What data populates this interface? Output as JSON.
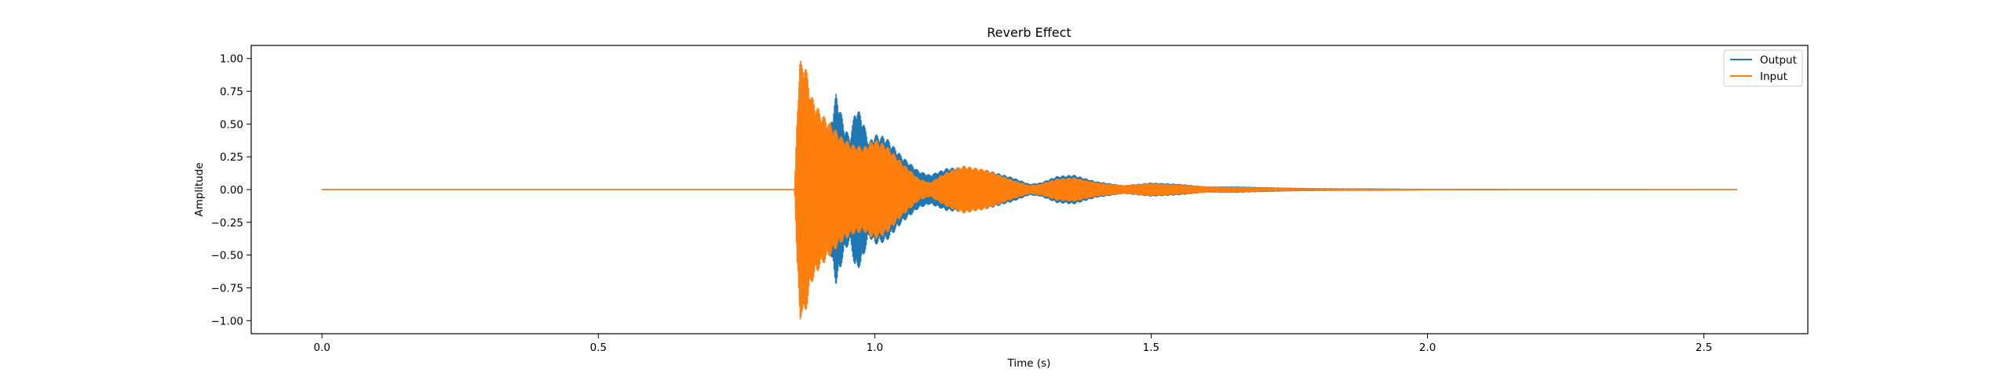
{
  "chart_data": {
    "type": "line",
    "title": "Reverb Effect",
    "xlabel": "Time (s)",
    "ylabel": "Amplitude",
    "xlim": [
      -0.128,
      2.688
    ],
    "ylim": [
      -1.1,
      1.1
    ],
    "x_ticks": [
      0.0,
      0.5,
      1.0,
      1.5,
      2.0,
      2.5
    ],
    "x_tick_labels": [
      "0.0",
      "0.5",
      "1.0",
      "1.5",
      "2.0",
      "2.5"
    ],
    "y_ticks": [
      1.0,
      0.75,
      0.5,
      0.25,
      0.0,
      -0.25,
      -0.5,
      -0.75,
      -1.0
    ],
    "y_tick_labels": [
      "1.00",
      "0.75",
      "0.50",
      "0.25",
      "0.00",
      "−0.25",
      "−0.50",
      "−0.75",
      "−1.00"
    ],
    "grid": false,
    "legend_position": "top-right",
    "series": [
      {
        "name": "Output",
        "color": "#1f77b4",
        "envelope": [
          [
            0.0,
            0.0
          ],
          [
            0.857,
            0.0
          ],
          [
            0.86,
            0.55
          ],
          [
            0.865,
            0.97
          ],
          [
            0.872,
            0.92
          ],
          [
            0.88,
            0.72
          ],
          [
            0.89,
            0.58
          ],
          [
            0.9,
            0.42
          ],
          [
            0.91,
            0.33
          ],
          [
            0.92,
            0.5
          ],
          [
            0.93,
            0.73
          ],
          [
            0.935,
            0.66
          ],
          [
            0.945,
            0.48
          ],
          [
            0.955,
            0.4
          ],
          [
            0.96,
            0.5
          ],
          [
            0.965,
            0.62
          ],
          [
            0.975,
            0.58
          ],
          [
            0.99,
            0.36
          ],
          [
            1.0,
            0.42
          ],
          [
            1.02,
            0.4
          ],
          [
            1.05,
            0.25
          ],
          [
            1.08,
            0.14
          ],
          [
            1.1,
            0.11
          ],
          [
            1.13,
            0.16
          ],
          [
            1.16,
            0.17
          ],
          [
            1.2,
            0.15
          ],
          [
            1.25,
            0.09
          ],
          [
            1.28,
            0.04
          ],
          [
            1.3,
            0.05
          ],
          [
            1.33,
            0.1
          ],
          [
            1.36,
            0.11
          ],
          [
            1.4,
            0.06
          ],
          [
            1.45,
            0.03
          ],
          [
            1.5,
            0.05
          ],
          [
            1.55,
            0.04
          ],
          [
            1.6,
            0.02
          ],
          [
            1.65,
            0.02
          ],
          [
            1.7,
            0.015
          ],
          [
            1.75,
            0.01
          ],
          [
            1.8,
            0.007
          ],
          [
            2.0,
            0.002
          ],
          [
            2.56,
            0.0
          ]
        ]
      },
      {
        "name": "Input",
        "color": "#ff7f0e",
        "envelope": [
          [
            0.0,
            0.0
          ],
          [
            0.855,
            0.0
          ],
          [
            0.86,
            0.65
          ],
          [
            0.865,
            1.0
          ],
          [
            0.868,
            0.95
          ],
          [
            0.872,
            1.0
          ],
          [
            0.878,
            0.88
          ],
          [
            0.885,
            0.72
          ],
          [
            0.9,
            0.6
          ],
          [
            0.92,
            0.5
          ],
          [
            0.94,
            0.4
          ],
          [
            0.96,
            0.34
          ],
          [
            0.98,
            0.32
          ],
          [
            1.0,
            0.38
          ],
          [
            1.02,
            0.34
          ],
          [
            1.05,
            0.2
          ],
          [
            1.08,
            0.08
          ],
          [
            1.1,
            0.05
          ],
          [
            1.13,
            0.13
          ],
          [
            1.16,
            0.18
          ],
          [
            1.2,
            0.15
          ],
          [
            1.25,
            0.07
          ],
          [
            1.28,
            0.03
          ],
          [
            1.3,
            0.04
          ],
          [
            1.33,
            0.08
          ],
          [
            1.36,
            0.09
          ],
          [
            1.4,
            0.05
          ],
          [
            1.45,
            0.03
          ],
          [
            1.5,
            0.045
          ],
          [
            1.55,
            0.035
          ],
          [
            1.6,
            0.02
          ],
          [
            1.65,
            0.015
          ],
          [
            1.7,
            0.012
          ],
          [
            1.75,
            0.008
          ],
          [
            1.8,
            0.005
          ],
          [
            2.0,
            0.001
          ],
          [
            2.56,
            0.0
          ]
        ]
      }
    ]
  }
}
